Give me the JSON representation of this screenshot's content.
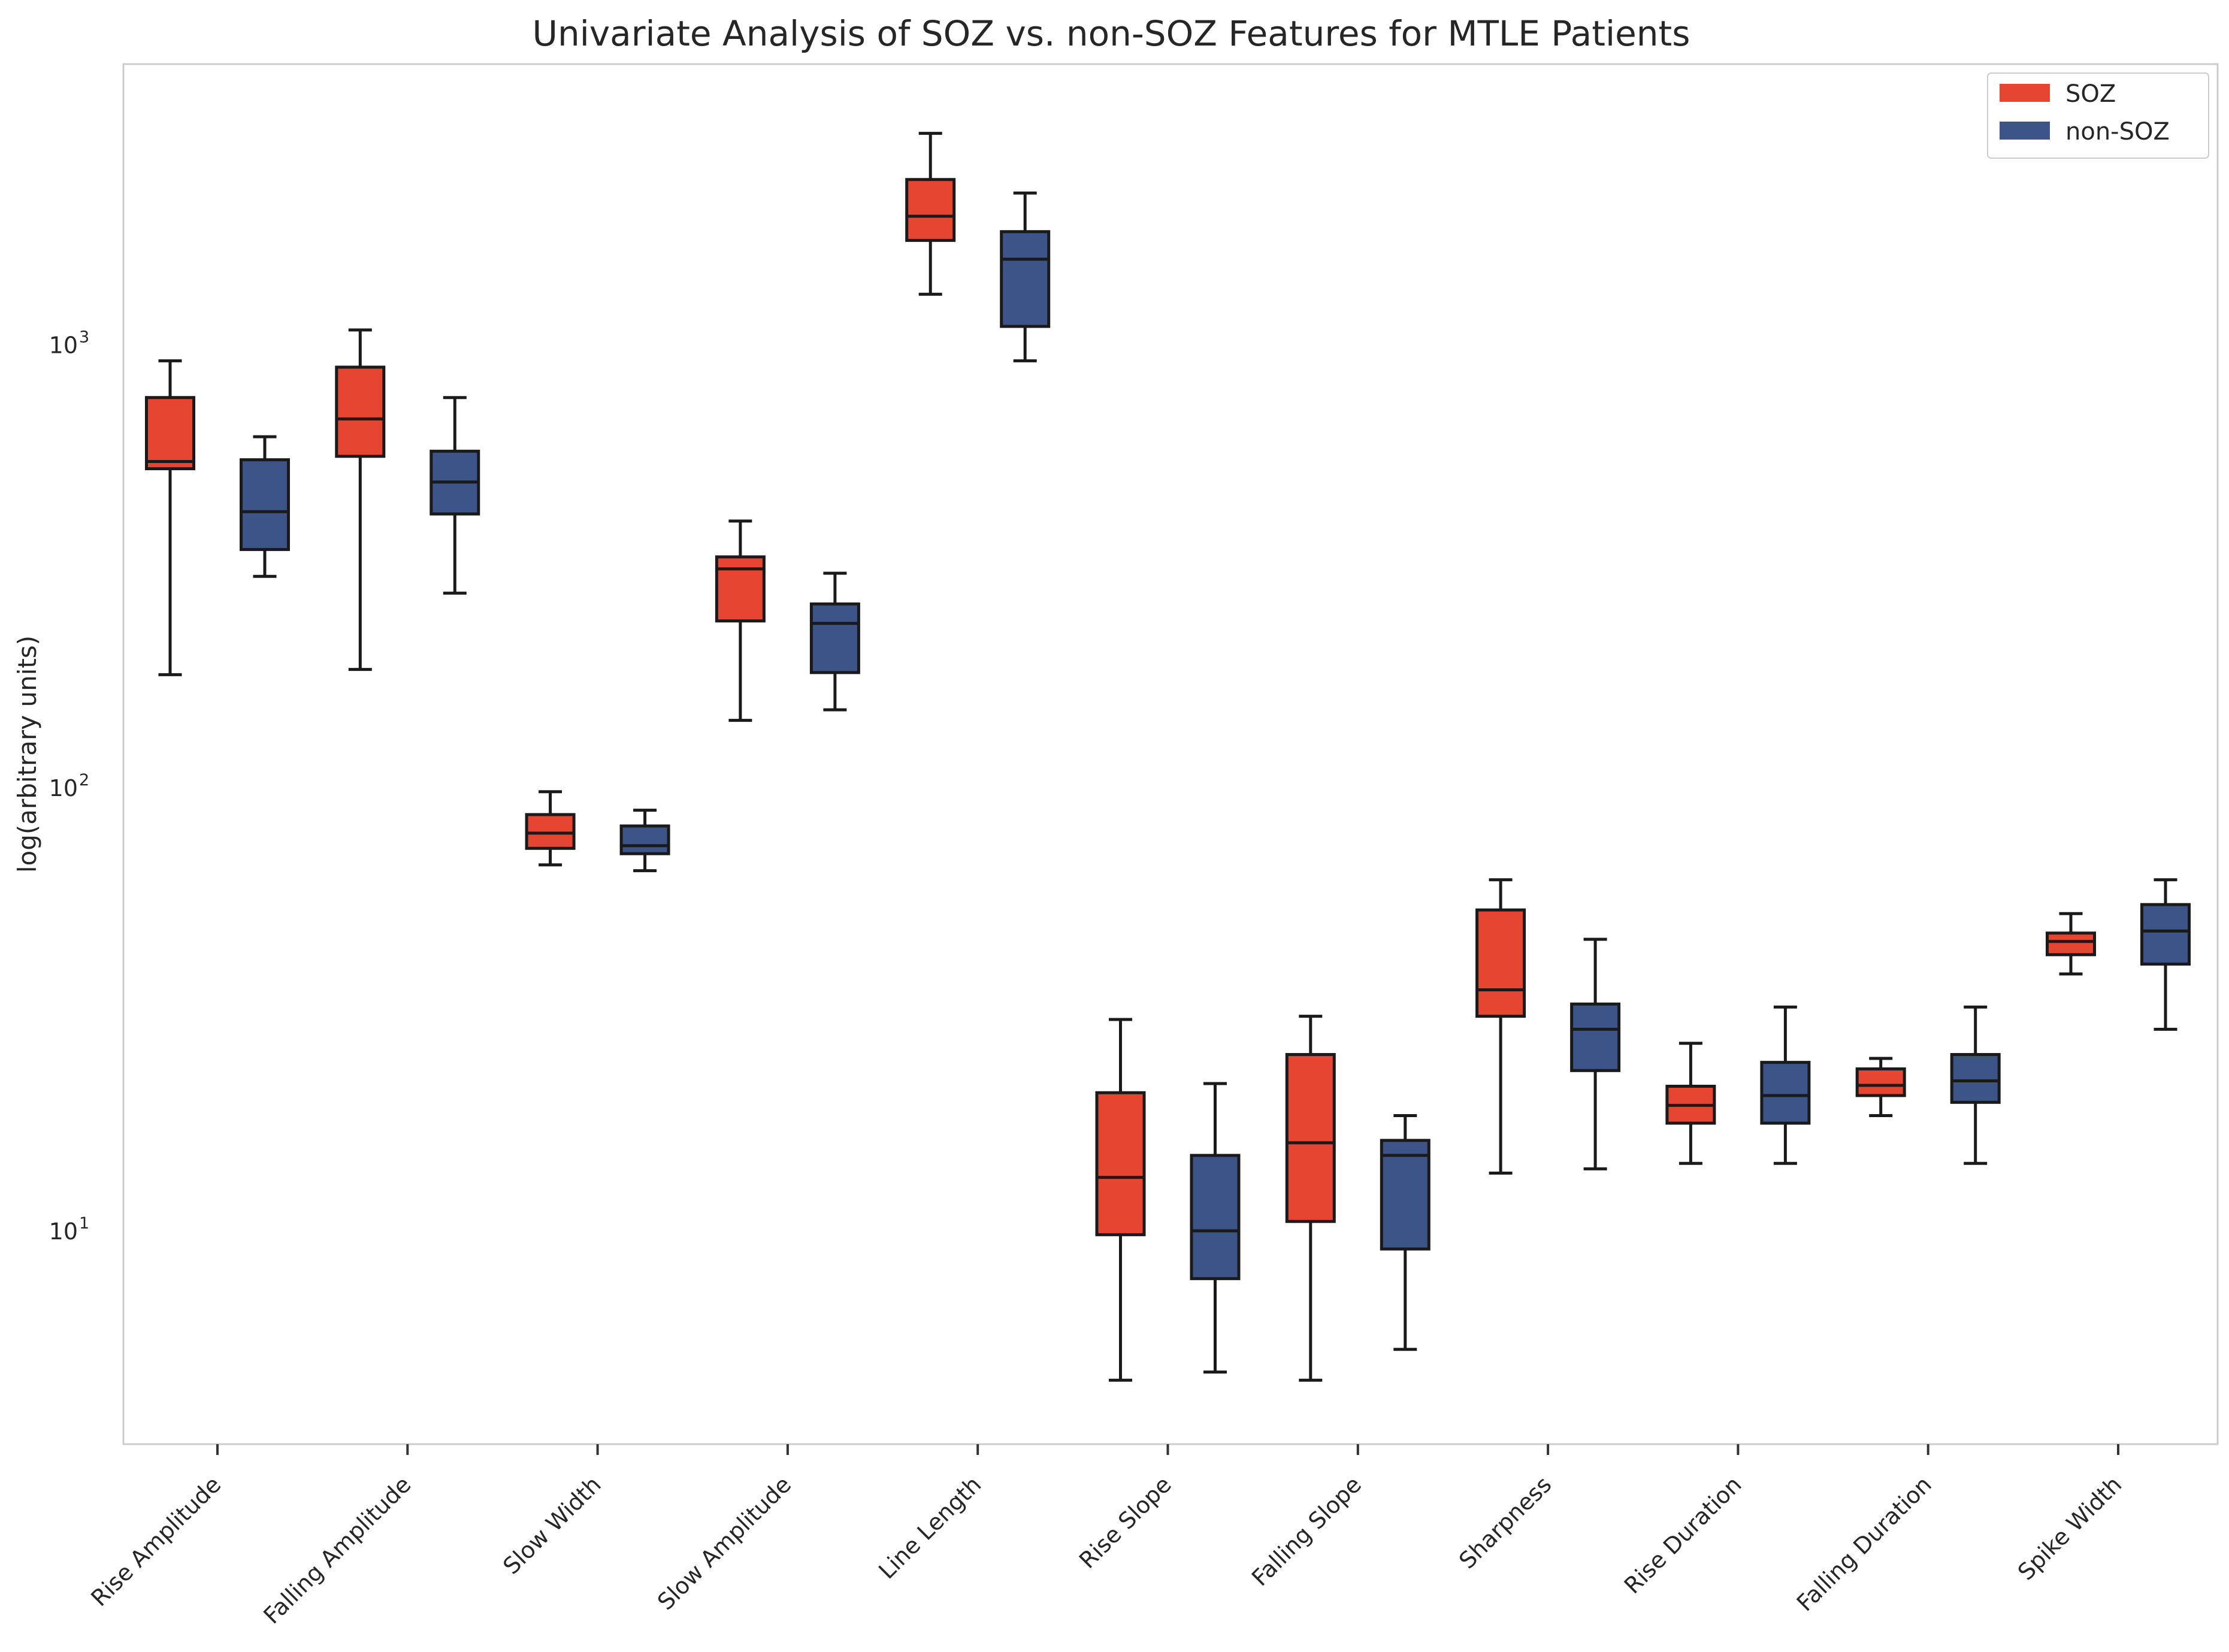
{
  "chart_data": {
    "type": "box",
    "title": "Univariate Analysis of SOZ vs. non-SOZ Features for MTLE Patients",
    "xlabel": "",
    "ylabel": "log(arbitrary units)",
    "yscale": "log",
    "ylim": [
      3.3,
      4300
    ],
    "y_ticks": [
      {
        "value": 10,
        "base": "10",
        "exp": "1"
      },
      {
        "value": 100,
        "base": "10",
        "exp": "2"
      },
      {
        "value": 1000,
        "base": "10",
        "exp": "3"
      }
    ],
    "grid": false,
    "legend_position": "top-right",
    "categories": [
      "Rise Amplitude",
      "Falling Amplitude",
      "Slow Width",
      "Slow Amplitude",
      "Line Length",
      "Rise Slope",
      "Falling Slope",
      "Sharpness",
      "Rise Duration",
      "Falling Duration",
      "Spike Width"
    ],
    "series": [
      {
        "name": "SOZ",
        "color": "#e64532",
        "boxes": [
          {
            "whislo": 180,
            "q1": 525,
            "med": 545,
            "q3": 760,
            "whishi": 920
          },
          {
            "whislo": 185,
            "q1": 560,
            "med": 680,
            "q3": 890,
            "whishi": 1080
          },
          {
            "whislo": 67,
            "q1": 73,
            "med": 79,
            "q3": 87,
            "whishi": 98
          },
          {
            "whislo": 142,
            "q1": 238,
            "med": 312,
            "q3": 332,
            "whishi": 400
          },
          {
            "whislo": 1300,
            "q1": 1720,
            "med": 1950,
            "q3": 2360,
            "whishi": 3000
          },
          {
            "whislo": 4.6,
            "q1": 9.8,
            "med": 13.2,
            "q3": 20.5,
            "whishi": 30
          },
          {
            "whislo": 4.6,
            "q1": 10.5,
            "med": 15.8,
            "q3": 25,
            "whishi": 30.5
          },
          {
            "whislo": 13.5,
            "q1": 30.5,
            "med": 35,
            "q3": 53,
            "whishi": 62
          },
          {
            "whislo": 14.2,
            "q1": 17.5,
            "med": 19.2,
            "q3": 21.2,
            "whishi": 26.5
          },
          {
            "whislo": 18.2,
            "q1": 20.2,
            "med": 21.3,
            "q3": 23.2,
            "whishi": 24.5
          },
          {
            "whislo": 38,
            "q1": 42,
            "med": 45,
            "q3": 47,
            "whishi": 52
          }
        ]
      },
      {
        "name": "non-SOZ",
        "color": "#3c5488",
        "boxes": [
          {
            "whislo": 300,
            "q1": 345,
            "med": 420,
            "q3": 550,
            "whishi": 620
          },
          {
            "whislo": 275,
            "q1": 415,
            "med": 490,
            "q3": 575,
            "whishi": 760
          },
          {
            "whislo": 65,
            "q1": 71,
            "med": 74,
            "q3": 82,
            "whishi": 89
          },
          {
            "whislo": 150,
            "q1": 182,
            "med": 235,
            "q3": 260,
            "whishi": 305
          },
          {
            "whislo": 920,
            "q1": 1100,
            "med": 1560,
            "q3": 1800,
            "whishi": 2200
          },
          {
            "whislo": 4.8,
            "q1": 7.8,
            "med": 10,
            "q3": 14.8,
            "whishi": 21.5
          },
          {
            "whislo": 5.4,
            "q1": 9.1,
            "med": 14.8,
            "q3": 16,
            "whishi": 18.2
          },
          {
            "whislo": 13.8,
            "q1": 23,
            "med": 28.5,
            "q3": 32.5,
            "whishi": 45.5
          },
          {
            "whislo": 14.2,
            "q1": 17.5,
            "med": 20.2,
            "q3": 24,
            "whishi": 32
          },
          {
            "whislo": 14.2,
            "q1": 19.5,
            "med": 21.8,
            "q3": 25,
            "whishi": 32
          },
          {
            "whislo": 28.5,
            "q1": 40,
            "med": 47.5,
            "q3": 54.5,
            "whishi": 62
          }
        ]
      }
    ]
  }
}
